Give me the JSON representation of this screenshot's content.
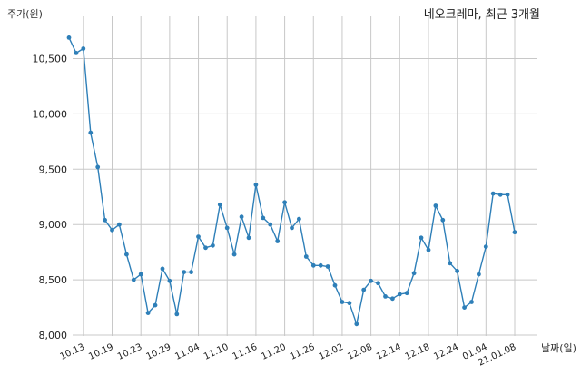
{
  "chart_data": {
    "type": "line",
    "title": "네오크레마, 최근 3개월",
    "ylabel": "주가(원)",
    "xlabel": "날짜(일)",
    "ylim": [
      8000,
      10700
    ],
    "yticks": [
      8000,
      8500,
      9000,
      9500,
      10000,
      10500
    ],
    "ytick_labels": [
      "8,000",
      "8,500",
      "9,000",
      "9,500",
      "10,000",
      "10,500"
    ],
    "grid": true,
    "line_color": "#2e7fb8",
    "xtick_labels": [
      "10.13",
      "10.19",
      "10.23",
      "10.29",
      "11.04",
      "11.10",
      "11.16",
      "11.20",
      "11.26",
      "12.02",
      "12.08",
      "12.14",
      "12.18",
      "12.24",
      "01.04",
      "21.01.08"
    ],
    "xtick_index": [
      2,
      6,
      10,
      14,
      18,
      22,
      26,
      30,
      34,
      38,
      42,
      46,
      50,
      54,
      58,
      62
    ],
    "series": [
      {
        "values": [
          10690,
          10550,
          10590,
          9830,
          9520,
          9040,
          8950,
          9000,
          8730,
          8500,
          8550,
          8200,
          8270,
          8600,
          8490,
          8190,
          8570,
          8570,
          8890,
          8790,
          8810,
          9180,
          8970,
          8730,
          9070,
          8880,
          9360,
          9060,
          9000,
          8850,
          9200,
          8970,
          9050,
          8710,
          8630,
          8630,
          8620,
          8450,
          8300,
          8290,
          8100,
          8410,
          8490,
          8470,
          8350,
          8330,
          8370,
          8380,
          8560,
          8880,
          8770,
          9170,
          9040,
          8650,
          8580,
          8250,
          8300,
          8550,
          8800,
          9280,
          9270,
          9270,
          8930
        ]
      }
    ]
  }
}
